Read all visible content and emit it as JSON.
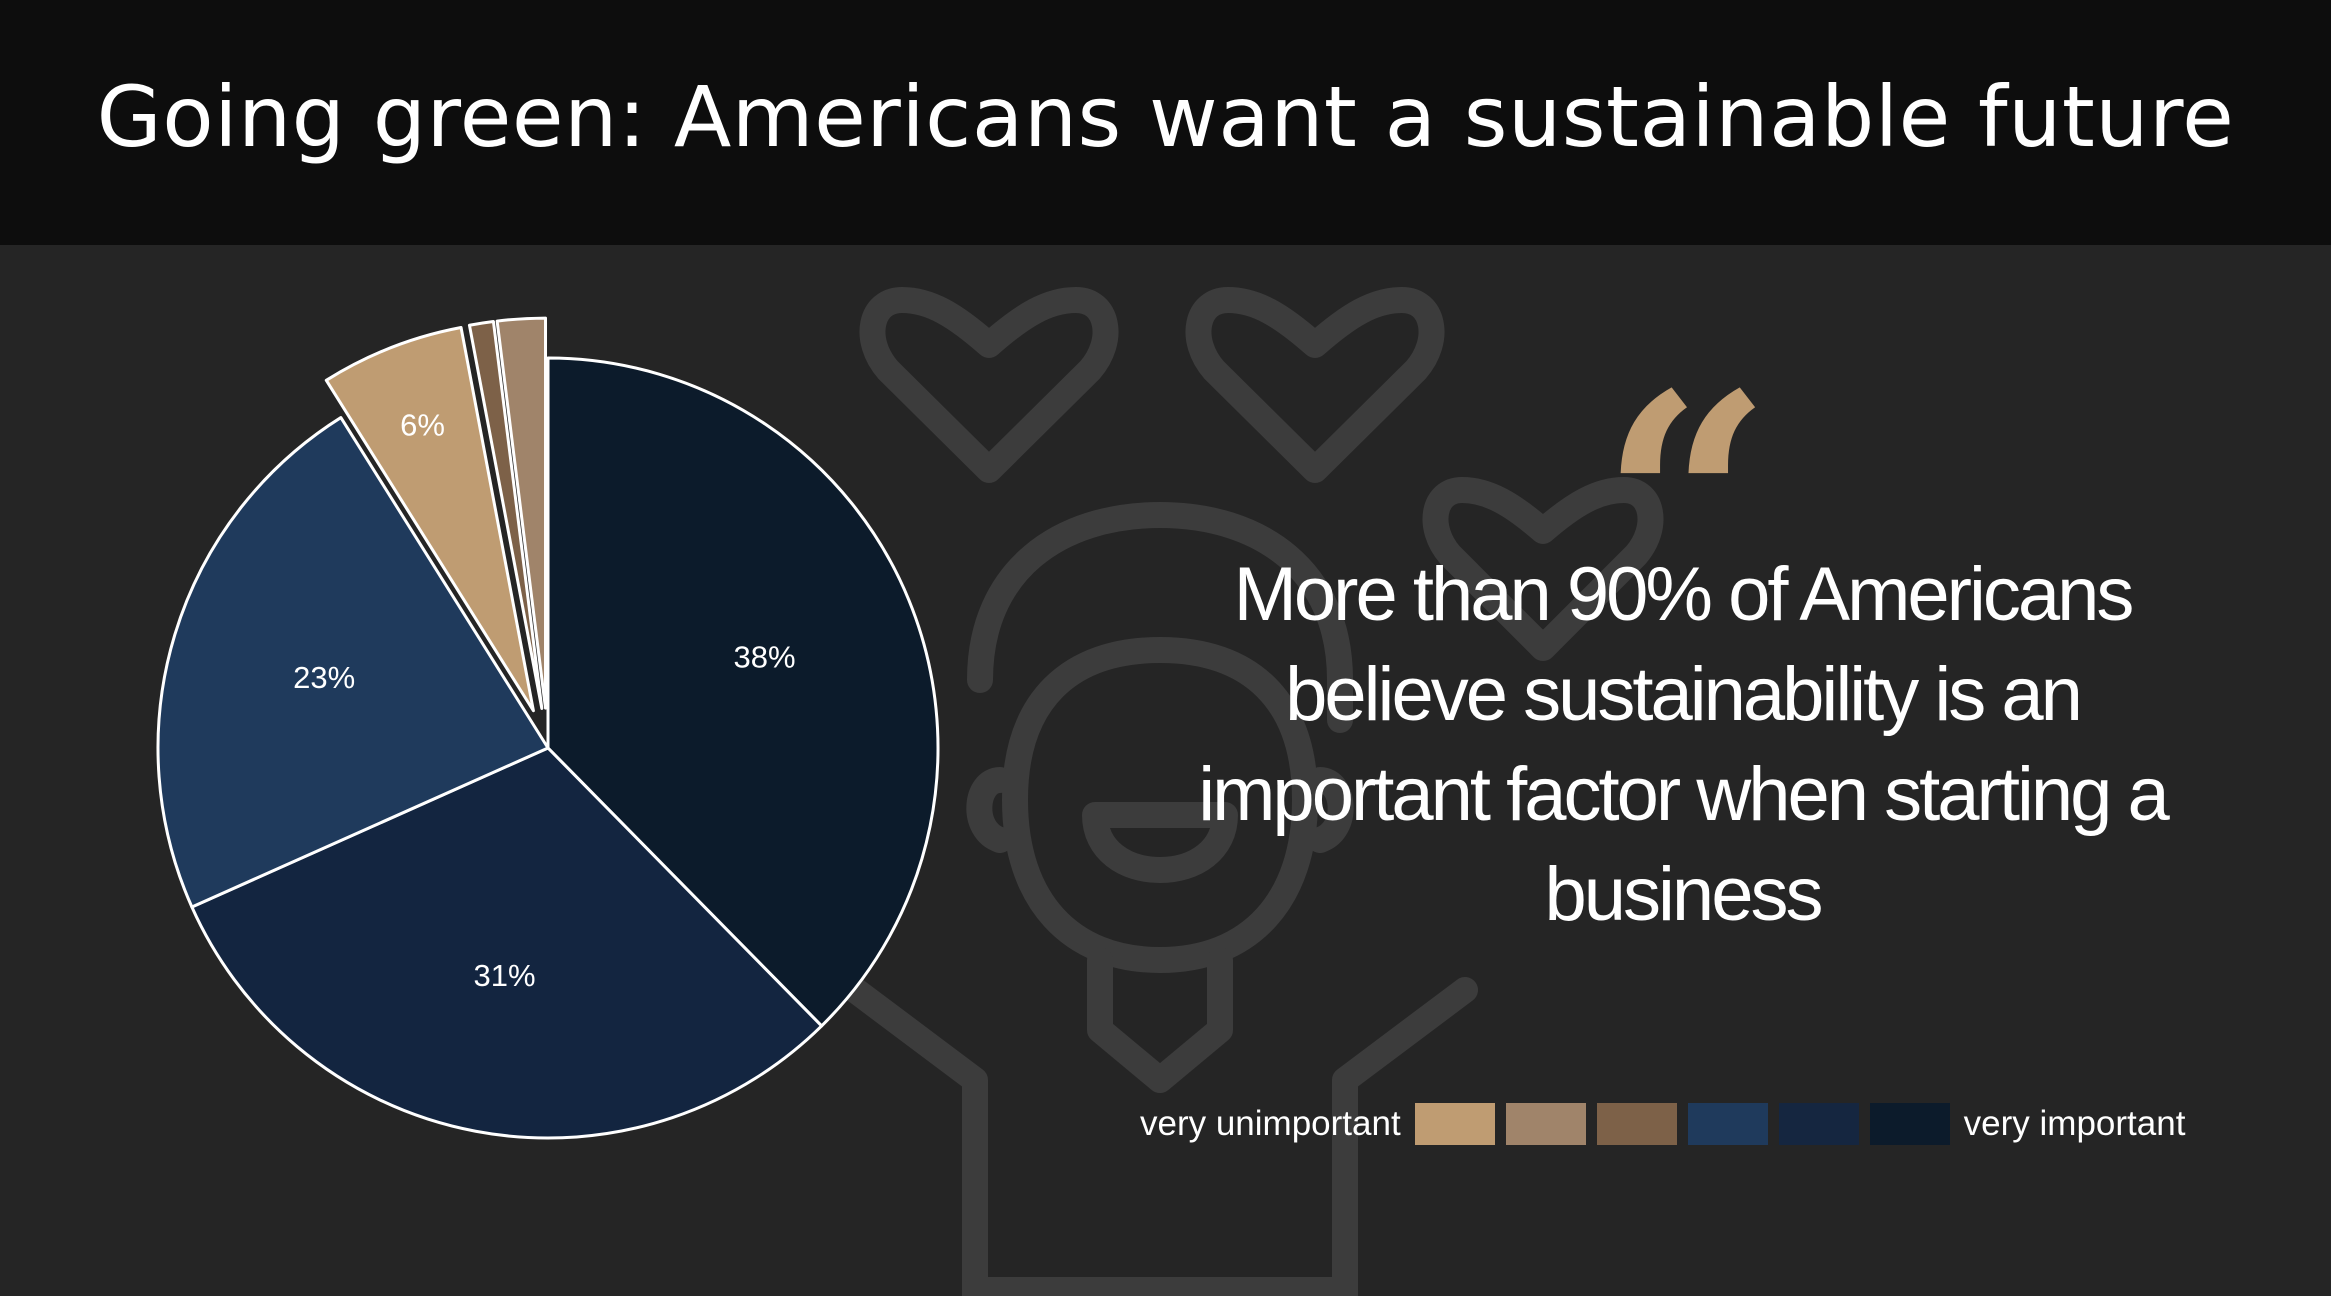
{
  "header": {
    "title": "Going green: Americans want a sustainable future"
  },
  "quote": {
    "mark": "“",
    "text": "More than 90% of Americans believe sustainability is an important factor when starting a business"
  },
  "colors": {
    "background": "#252525",
    "header_bg": "#0d0d0d",
    "accent": "#bf9c72",
    "illustration_stroke": "#3c3c3c",
    "slice_border": "#ffffff"
  },
  "icons": [
    "heart-icon",
    "person-holding-hearts-icon",
    "quote-icon"
  ],
  "legend": {
    "left_label": "very unimportant",
    "right_label": "very important",
    "scale_colors": [
      "#bf9c72",
      "#a0846a",
      "#7d6148",
      "#1f3a5c",
      "#152640",
      "#0c1b2b"
    ]
  },
  "chart_data": {
    "type": "pie",
    "title": "",
    "slices": [
      {
        "value": 38,
        "label": "38%",
        "color": "#0c1b2b",
        "exploded": false
      },
      {
        "value": 31,
        "label": "31%",
        "color": "#132540",
        "exploded": false
      },
      {
        "value": 23,
        "label": "23%",
        "color": "#1f3a5c",
        "exploded": false
      },
      {
        "value": 6,
        "label": "6%",
        "color": "#bf9c72",
        "exploded": true
      },
      {
        "value": 1,
        "label": "",
        "color": "#7d6148",
        "exploded": true
      },
      {
        "value": 2,
        "label": "",
        "color": "#a0846a",
        "exploded": true
      }
    ],
    "start": "12 o'clock",
    "direction": "clockwise"
  }
}
